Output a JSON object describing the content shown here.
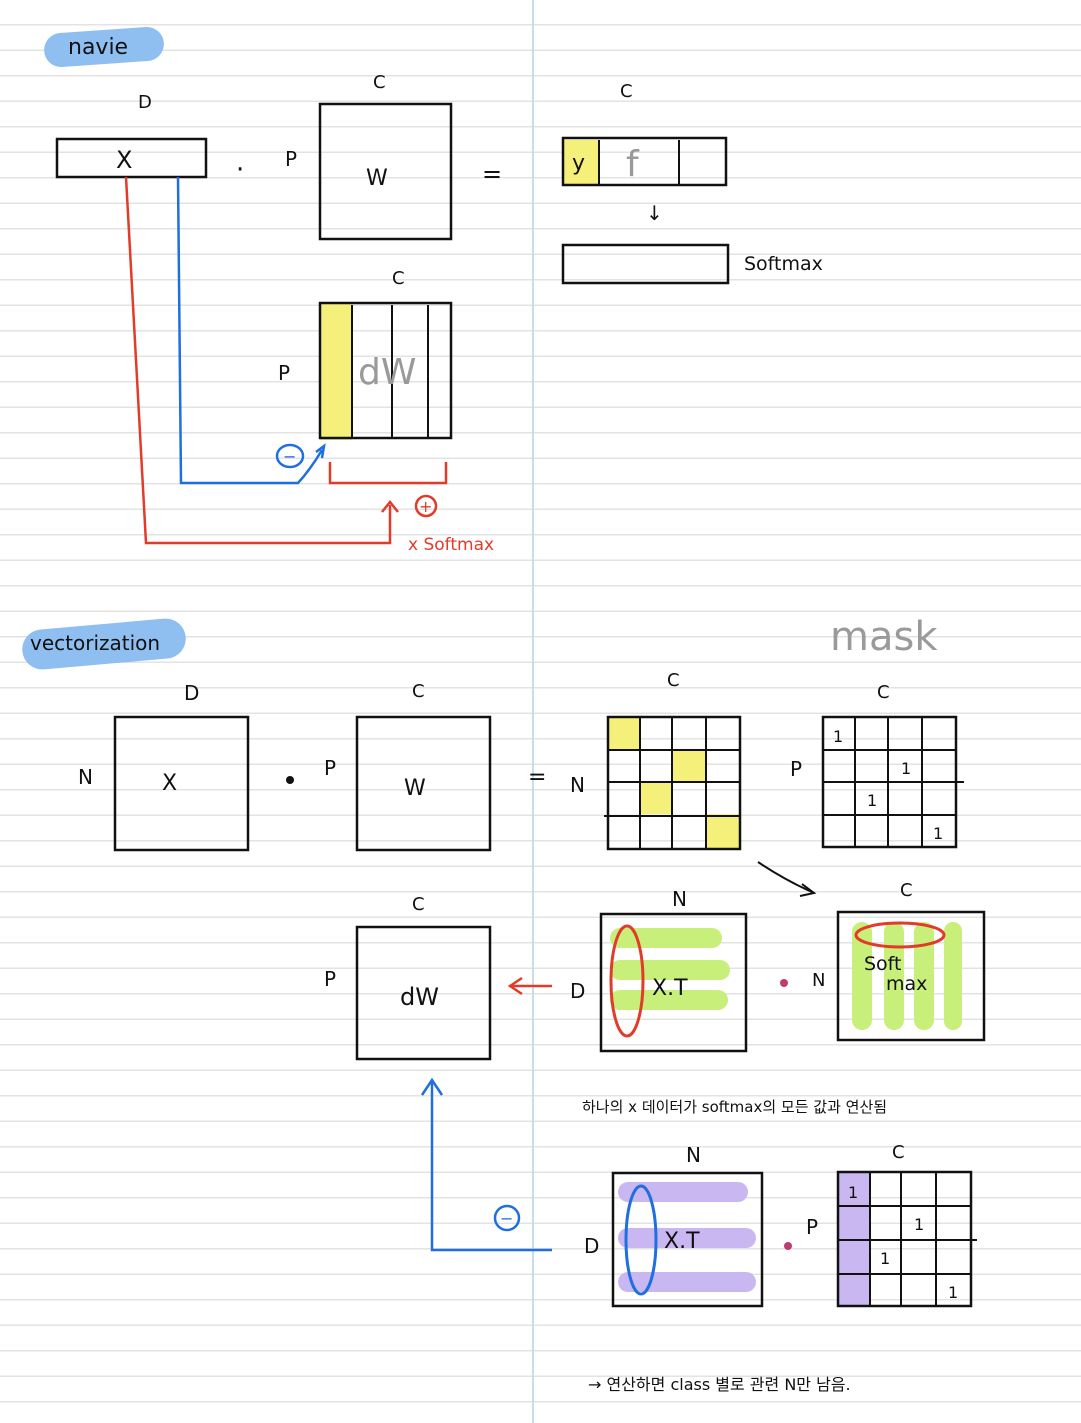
{
  "sections": {
    "naive_title": "navie",
    "vectorization_title": "vectorization"
  },
  "naive": {
    "D": "D",
    "C_w": "C",
    "C_out": "C",
    "C_dw": "C",
    "P_w": "P",
    "P_dw": "P",
    "X": "X",
    "W": "W",
    "dot": "·",
    "equals": "=",
    "y": "y",
    "f": "f",
    "arrow_down": "↓",
    "softmax": "Softmax",
    "dW": "dW",
    "minus": "−",
    "plus": "+",
    "x_softmax": "x Softmax"
  },
  "vectorization": {
    "D": "D",
    "C_w": "C",
    "C_out": "C",
    "C_mask": "C",
    "C_dw": "C",
    "C_softmax": "C",
    "C_mask2": "C",
    "N_left": "N",
    "N_out": "N",
    "N_xt": "N",
    "N_softmax": "N",
    "N_xt2": "N",
    "P_w": "P",
    "P_mask": "P",
    "P_dw": "P",
    "P_mask2": "P",
    "D_xt": "D",
    "D_xt2": "D",
    "X": "X",
    "W": "W",
    "dW": "dW",
    "XT": "X.T",
    "XT2": "X.T",
    "soft": "Soft",
    "max": "max",
    "mask": "mask",
    "one": "1",
    "equals": "=",
    "minus": "−",
    "note1": "하나의 x 데이터가 softmax의 모든 값과 연산됨",
    "note2": "→ 연산하면 class 별로 관련 N만 남음."
  },
  "colors": {
    "black": "#111111",
    "red": "#e23b2a",
    "blue": "#1f6fe0",
    "yellow": "#f5f07a",
    "green": "#c7ef7a",
    "purple": "#c9b7f2",
    "title_highlight": "#8fbff0",
    "gray_text": "#9a9a9a"
  }
}
